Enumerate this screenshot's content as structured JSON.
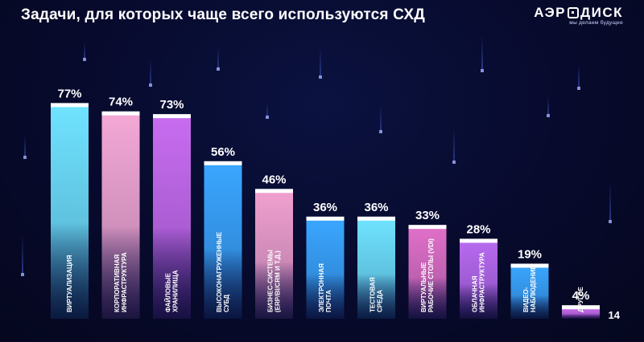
{
  "header": {
    "title": "Задачи, для которых чаще всего используются СХД"
  },
  "logo": {
    "word_left": "АЭР",
    "word_right": "ДИСК",
    "tagline": "мы делаем будущее"
  },
  "page_number": "14",
  "chart_data": {
    "type": "bar",
    "title": "Задачи, для которых чаще всего используются СХД",
    "unit": "%",
    "ylim": [
      0,
      100
    ],
    "grid": false,
    "legend": "none",
    "categories": [
      [
        "ВИРТУАЛИЗАЦИЯ"
      ],
      [
        "КОРПОРАТИВНАЯ",
        "ИНФРАСТРУКТУРА"
      ],
      [
        "ФАЙЛОВЫЕ",
        "ХРАНИЛИЩА"
      ],
      [
        "ВЫСОКОНАГРУЖЕННЫЕ",
        "СУБД"
      ],
      [
        "БИЗНЕС-СИСТЕМЫ",
        "(ERP/BI/CRM И Т.Д.)"
      ],
      [
        "ЭЛЕКТРОННАЯ",
        "ПОЧТА"
      ],
      [
        "ТЕСТОВАЯ",
        "СРЕДА"
      ],
      [
        "ВИРТУАЛЬНЫЕ",
        "РАБОЧИЕ СТОЛЫ (VDI)"
      ],
      [
        "ОБЛАЧНАЯ",
        "ИНФРАСТРУКТУРА"
      ],
      [
        "ВИДЕО-",
        "НАБЛЮДЕНИЕ"
      ],
      [
        "ДРУГОЕ"
      ]
    ],
    "values": [
      77,
      74,
      73,
      56,
      46,
      36,
      36,
      33,
      28,
      19,
      4
    ],
    "value_labels": [
      "77%",
      "74%",
      "73%",
      "56%",
      "46%",
      "36%",
      "36%",
      "33%",
      "28%",
      "19%",
      "4%"
    ],
    "bar_gradients": [
      [
        "#6fe3ff",
        "#1a4f8f"
      ],
      [
        "#f4a8d6",
        "#5a3a8a"
      ],
      [
        "#c86cf0",
        "#4a2590"
      ],
      [
        "#3aa6ff",
        "#153a86"
      ],
      [
        "#f0a0cf",
        "#543686"
      ],
      [
        "#3aa6ff",
        "#153a86"
      ],
      [
        "#6fe3ff",
        "#1a4f8f"
      ],
      [
        "#e070c8",
        "#442a84"
      ],
      [
        "#b86af0",
        "#3e2488"
      ],
      [
        "#3aa6ff",
        "#153a86"
      ],
      [
        "#c86cf0",
        "#4a2590"
      ]
    ]
  },
  "decor": {
    "streak_color": "#2a3a8a",
    "tip_color": "#aab4ff"
  }
}
